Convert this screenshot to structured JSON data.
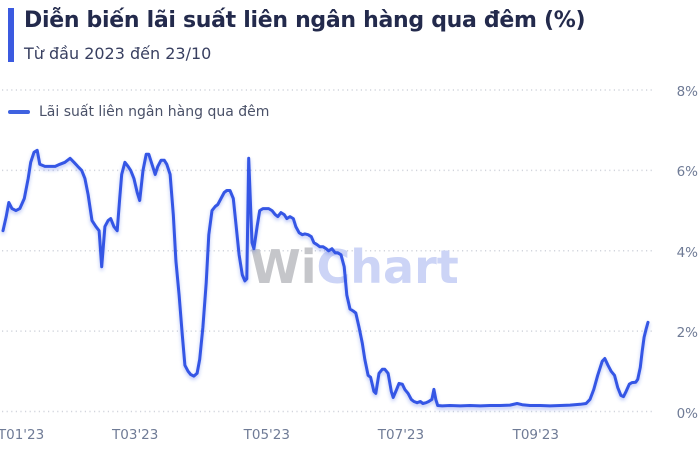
{
  "header": {
    "title": "Diễn biến lãi suất liên ngân hàng qua đêm (%)",
    "subtitle": "Từ đầu 2023 đến 23/10"
  },
  "legend": {
    "label": "Lãi suất liên ngân hàng qua đêm"
  },
  "watermark": {
    "part1": "Wi",
    "part2": "Chart"
  },
  "colors": {
    "accent": "#3b5ae0",
    "line": "#3457e5",
    "line_glow": "rgba(52,87,229,0.35)",
    "title": "#232a4c",
    "subtitle": "#383f60",
    "legend_text": "#4a5168",
    "axis_label": "#6f7b96",
    "grid": "#d1d4dc",
    "watermark_gray": "#c5c6ca",
    "watermark_blue": "#ccd4f6",
    "background": "#ffffff"
  },
  "chart_data": {
    "type": "line",
    "title": "Diễn biến lãi suất liên ngân hàng qua đêm (%)",
    "subtitle": "Từ đầu 2023 đến 23/10",
    "ylabel": "",
    "xlabel": "",
    "ylim": [
      0,
      8
    ],
    "grid": "horizontal-dotted",
    "legend_position": "top-left",
    "yticks": [
      {
        "value": 0,
        "label": "0%"
      },
      {
        "value": 2,
        "label": "2%"
      },
      {
        "value": 4,
        "label": "4%"
      },
      {
        "value": 6,
        "label": "6%"
      },
      {
        "value": 8,
        "label": "8%"
      }
    ],
    "xticks": [
      {
        "pos": 0.028,
        "label": "T01'23"
      },
      {
        "pos": 0.205,
        "label": "T03'23"
      },
      {
        "pos": 0.409,
        "label": "T05'23"
      },
      {
        "pos": 0.617,
        "label": "T07'23"
      },
      {
        "pos": 0.826,
        "label": "T09'23"
      }
    ],
    "series": [
      {
        "name": "Lãi suất liên ngân hàng qua đêm",
        "unit": "%",
        "points": [
          [
            0.0,
            4.5
          ],
          [
            0.005,
            4.85
          ],
          [
            0.009,
            5.2
          ],
          [
            0.014,
            5.05
          ],
          [
            0.02,
            5.0
          ],
          [
            0.026,
            5.05
          ],
          [
            0.033,
            5.3
          ],
          [
            0.039,
            5.8
          ],
          [
            0.043,
            6.2
          ],
          [
            0.048,
            6.45
          ],
          [
            0.053,
            6.5
          ],
          [
            0.057,
            6.15
          ],
          [
            0.065,
            6.1
          ],
          [
            0.073,
            6.1
          ],
          [
            0.081,
            6.1
          ],
          [
            0.088,
            6.15
          ],
          [
            0.096,
            6.2
          ],
          [
            0.104,
            6.3
          ],
          [
            0.11,
            6.2
          ],
          [
            0.116,
            6.1
          ],
          [
            0.122,
            6.0
          ],
          [
            0.127,
            5.8
          ],
          [
            0.132,
            5.4
          ],
          [
            0.138,
            4.75
          ],
          [
            0.144,
            4.6
          ],
          [
            0.149,
            4.5
          ],
          [
            0.153,
            3.6
          ],
          [
            0.158,
            4.6
          ],
          [
            0.163,
            4.75
          ],
          [
            0.167,
            4.8
          ],
          [
            0.172,
            4.6
          ],
          [
            0.177,
            4.5
          ],
          [
            0.181,
            5.3
          ],
          [
            0.184,
            5.9
          ],
          [
            0.189,
            6.2
          ],
          [
            0.194,
            6.1
          ],
          [
            0.198,
            6.0
          ],
          [
            0.203,
            5.8
          ],
          [
            0.208,
            5.45
          ],
          [
            0.212,
            5.25
          ],
          [
            0.217,
            6.0
          ],
          [
            0.222,
            6.4
          ],
          [
            0.226,
            6.4
          ],
          [
            0.231,
            6.15
          ],
          [
            0.236,
            5.9
          ],
          [
            0.24,
            6.1
          ],
          [
            0.245,
            6.25
          ],
          [
            0.25,
            6.25
          ],
          [
            0.254,
            6.15
          ],
          [
            0.259,
            5.9
          ],
          [
            0.264,
            4.9
          ],
          [
            0.268,
            3.75
          ],
          [
            0.273,
            2.9
          ],
          [
            0.278,
            1.9
          ],
          [
            0.282,
            1.15
          ],
          [
            0.287,
            1.0
          ],
          [
            0.291,
            0.92
          ],
          [
            0.296,
            0.88
          ],
          [
            0.301,
            0.95
          ],
          [
            0.305,
            1.3
          ],
          [
            0.31,
            2.1
          ],
          [
            0.315,
            3.2
          ],
          [
            0.319,
            4.4
          ],
          [
            0.324,
            5.0
          ],
          [
            0.329,
            5.1
          ],
          [
            0.333,
            5.15
          ],
          [
            0.338,
            5.3
          ],
          [
            0.343,
            5.45
          ],
          [
            0.347,
            5.5
          ],
          [
            0.352,
            5.5
          ],
          [
            0.357,
            5.3
          ],
          [
            0.361,
            4.7
          ],
          [
            0.366,
            3.9
          ],
          [
            0.371,
            3.4
          ],
          [
            0.375,
            3.25
          ],
          [
            0.378,
            3.3
          ],
          [
            0.381,
            6.3
          ],
          [
            0.386,
            4.2
          ],
          [
            0.389,
            4.05
          ],
          [
            0.394,
            4.6
          ],
          [
            0.398,
            5.0
          ],
          [
            0.403,
            5.05
          ],
          [
            0.408,
            5.05
          ],
          [
            0.412,
            5.05
          ],
          [
            0.417,
            5.0
          ],
          [
            0.422,
            4.9
          ],
          [
            0.426,
            4.85
          ],
          [
            0.431,
            4.95
          ],
          [
            0.436,
            4.9
          ],
          [
            0.44,
            4.8
          ],
          [
            0.445,
            4.85
          ],
          [
            0.45,
            4.8
          ],
          [
            0.454,
            4.6
          ],
          [
            0.459,
            4.45
          ],
          [
            0.464,
            4.4
          ],
          [
            0.468,
            4.42
          ],
          [
            0.473,
            4.4
          ],
          [
            0.478,
            4.35
          ],
          [
            0.482,
            4.2
          ],
          [
            0.487,
            4.15
          ],
          [
            0.491,
            4.1
          ],
          [
            0.496,
            4.1
          ],
          [
            0.501,
            4.05
          ],
          [
            0.505,
            4.0
          ],
          [
            0.51,
            4.05
          ],
          [
            0.515,
            3.95
          ],
          [
            0.519,
            3.95
          ],
          [
            0.524,
            3.9
          ],
          [
            0.529,
            3.6
          ],
          [
            0.533,
            2.9
          ],
          [
            0.538,
            2.55
          ],
          [
            0.543,
            2.5
          ],
          [
            0.547,
            2.45
          ],
          [
            0.552,
            2.1
          ],
          [
            0.557,
            1.7
          ],
          [
            0.561,
            1.3
          ],
          [
            0.566,
            0.9
          ],
          [
            0.57,
            0.85
          ],
          [
            0.575,
            0.5
          ],
          [
            0.578,
            0.45
          ],
          [
            0.583,
            0.95
          ],
          [
            0.588,
            1.05
          ],
          [
            0.592,
            1.05
          ],
          [
            0.597,
            0.95
          ],
          [
            0.602,
            0.5
          ],
          [
            0.605,
            0.35
          ],
          [
            0.609,
            0.5
          ],
          [
            0.614,
            0.7
          ],
          [
            0.619,
            0.68
          ],
          [
            0.623,
            0.55
          ],
          [
            0.628,
            0.45
          ],
          [
            0.633,
            0.3
          ],
          [
            0.637,
            0.25
          ],
          [
            0.642,
            0.22
          ],
          [
            0.647,
            0.25
          ],
          [
            0.651,
            0.2
          ],
          [
            0.656,
            0.22
          ],
          [
            0.66,
            0.25
          ],
          [
            0.665,
            0.3
          ],
          [
            0.668,
            0.55
          ],
          [
            0.671,
            0.3
          ],
          [
            0.674,
            0.15
          ],
          [
            0.681,
            0.14
          ],
          [
            0.693,
            0.15
          ],
          [
            0.709,
            0.14
          ],
          [
            0.724,
            0.15
          ],
          [
            0.74,
            0.14
          ],
          [
            0.755,
            0.15
          ],
          [
            0.771,
            0.15
          ],
          [
            0.786,
            0.16
          ],
          [
            0.797,
            0.2
          ],
          [
            0.805,
            0.17
          ],
          [
            0.817,
            0.15
          ],
          [
            0.833,
            0.15
          ],
          [
            0.848,
            0.14
          ],
          [
            0.864,
            0.15
          ],
          [
            0.879,
            0.16
          ],
          [
            0.895,
            0.18
          ],
          [
            0.904,
            0.2
          ],
          [
            0.91,
            0.3
          ],
          [
            0.916,
            0.55
          ],
          [
            0.922,
            0.9
          ],
          [
            0.929,
            1.25
          ],
          [
            0.933,
            1.32
          ],
          [
            0.938,
            1.15
          ],
          [
            0.943,
            1.0
          ],
          [
            0.948,
            0.9
          ],
          [
            0.953,
            0.6
          ],
          [
            0.958,
            0.4
          ],
          [
            0.962,
            0.37
          ],
          [
            0.966,
            0.5
          ],
          [
            0.971,
            0.68
          ],
          [
            0.975,
            0.72
          ],
          [
            0.981,
            0.73
          ],
          [
            0.984,
            0.8
          ],
          [
            0.988,
            1.1
          ],
          [
            0.991,
            1.5
          ],
          [
            0.994,
            1.85
          ],
          [
            0.997,
            2.05
          ],
          [
            1.0,
            2.22
          ]
        ]
      }
    ]
  }
}
